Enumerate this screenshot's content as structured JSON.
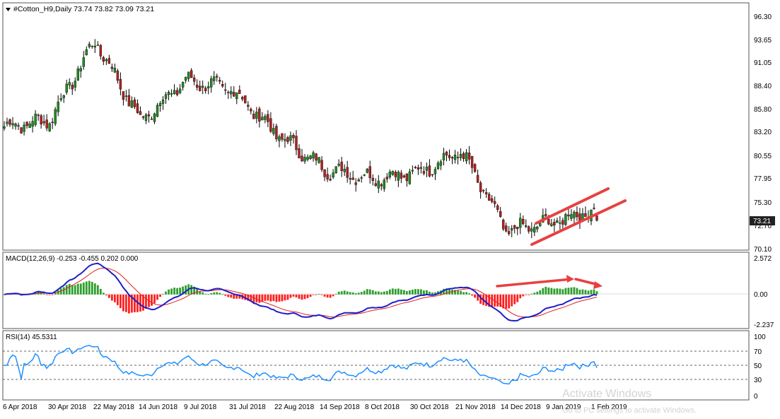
{
  "main_panel": {
    "header": "#Cotton_H9,Daily  73.74 73.82 73.09 73.21",
    "price_ticks": [
      "96.30",
      "93.65",
      "91.05",
      "88.40",
      "85.80",
      "83.20",
      "80.55",
      "77.95",
      "75.30",
      "72.70",
      "70.10"
    ],
    "current_price": "73.21"
  },
  "macd_panel": {
    "header": "MACD(12,26,9) -0.253 -0.455 0.202 0.000",
    "ticks": [
      "2.572",
      "0.00",
      "-2.237"
    ]
  },
  "rsi_panel": {
    "header": "RSI(14) 45.5311",
    "ticks": [
      "100",
      "70",
      "50",
      "30",
      "0"
    ]
  },
  "date_axis": [
    "6 Apr 2018",
    "30 Apr 2018",
    "22 May 2018",
    "14 Jun 2018",
    "9 Jul 2018",
    "31 Jul 2018",
    "22 Aug 2018",
    "14 Sep 2018",
    "8 Oct 2018",
    "30 Oct 2018",
    "21 Nov 2018",
    "14 Dec 2018",
    "9 Jan 2019",
    "1 Feb 2019"
  ],
  "watermark": {
    "line1": "Activate Windows",
    "line2": "Go to PC settings to activate Windows."
  },
  "colors": {
    "bull": "#228b22",
    "bear": "#b22222",
    "macd_line": "#1e1ec8",
    "signal_line": "#e02020",
    "hist_pos": "#2e9e2e",
    "hist_neg": "#ff2020",
    "rsi_line": "#1e90ff",
    "annotation": "#e84040"
  },
  "chart_data": [
    {
      "type": "candlestick",
      "title": "#Cotton_H9,Daily",
      "ylim": [
        70.1,
        96.3
      ],
      "x_ticks": [
        "6 Apr 2018",
        "30 Apr 2018",
        "22 May 2018",
        "14 Jun 2018",
        "9 Jul 2018",
        "31 Jul 2018",
        "22 Aug 2018",
        "14 Sep 2018",
        "8 Oct 2018",
        "30 Oct 2018",
        "21 Nov 2018",
        "14 Dec 2018",
        "9 Jan 2019",
        "1 Feb 2019"
      ],
      "close_path": [
        [
          "6 Apr 2018",
          83.8
        ],
        [
          "30 Apr 2018",
          84.5
        ],
        [
          "22 May 2018",
          93.5
        ],
        [
          "14 Jun 2018",
          84.5
        ],
        [
          "9 Jul 2018",
          89.0
        ],
        [
          "31 Jul 2018",
          88.0
        ],
        [
          "22 Aug 2018",
          83.0
        ],
        [
          "14 Sep 2018",
          79.0
        ],
        [
          "8 Oct 2018",
          78.0
        ],
        [
          "30 Oct 2018",
          78.5
        ],
        [
          "21 Nov 2018",
          81.0
        ],
        [
          "14 Dec 2018",
          72.0
        ],
        [
          "9 Jan 2019",
          73.0
        ],
        [
          "1 Feb 2019",
          74.5
        ]
      ],
      "last": {
        "open": 73.74,
        "high": 73.82,
        "low": 73.09,
        "close": 73.21
      }
    },
    {
      "type": "line",
      "title": "MACD(12,26,9)",
      "ylim": [
        -2.237,
        2.572
      ],
      "values": {
        "macd": -0.253,
        "signal": -0.455,
        "histogram": 0.202
      }
    },
    {
      "type": "line",
      "title": "RSI(14)",
      "ylim": [
        0,
        100
      ],
      "levels": [
        70,
        50,
        30
      ],
      "last": 45.5311
    }
  ]
}
